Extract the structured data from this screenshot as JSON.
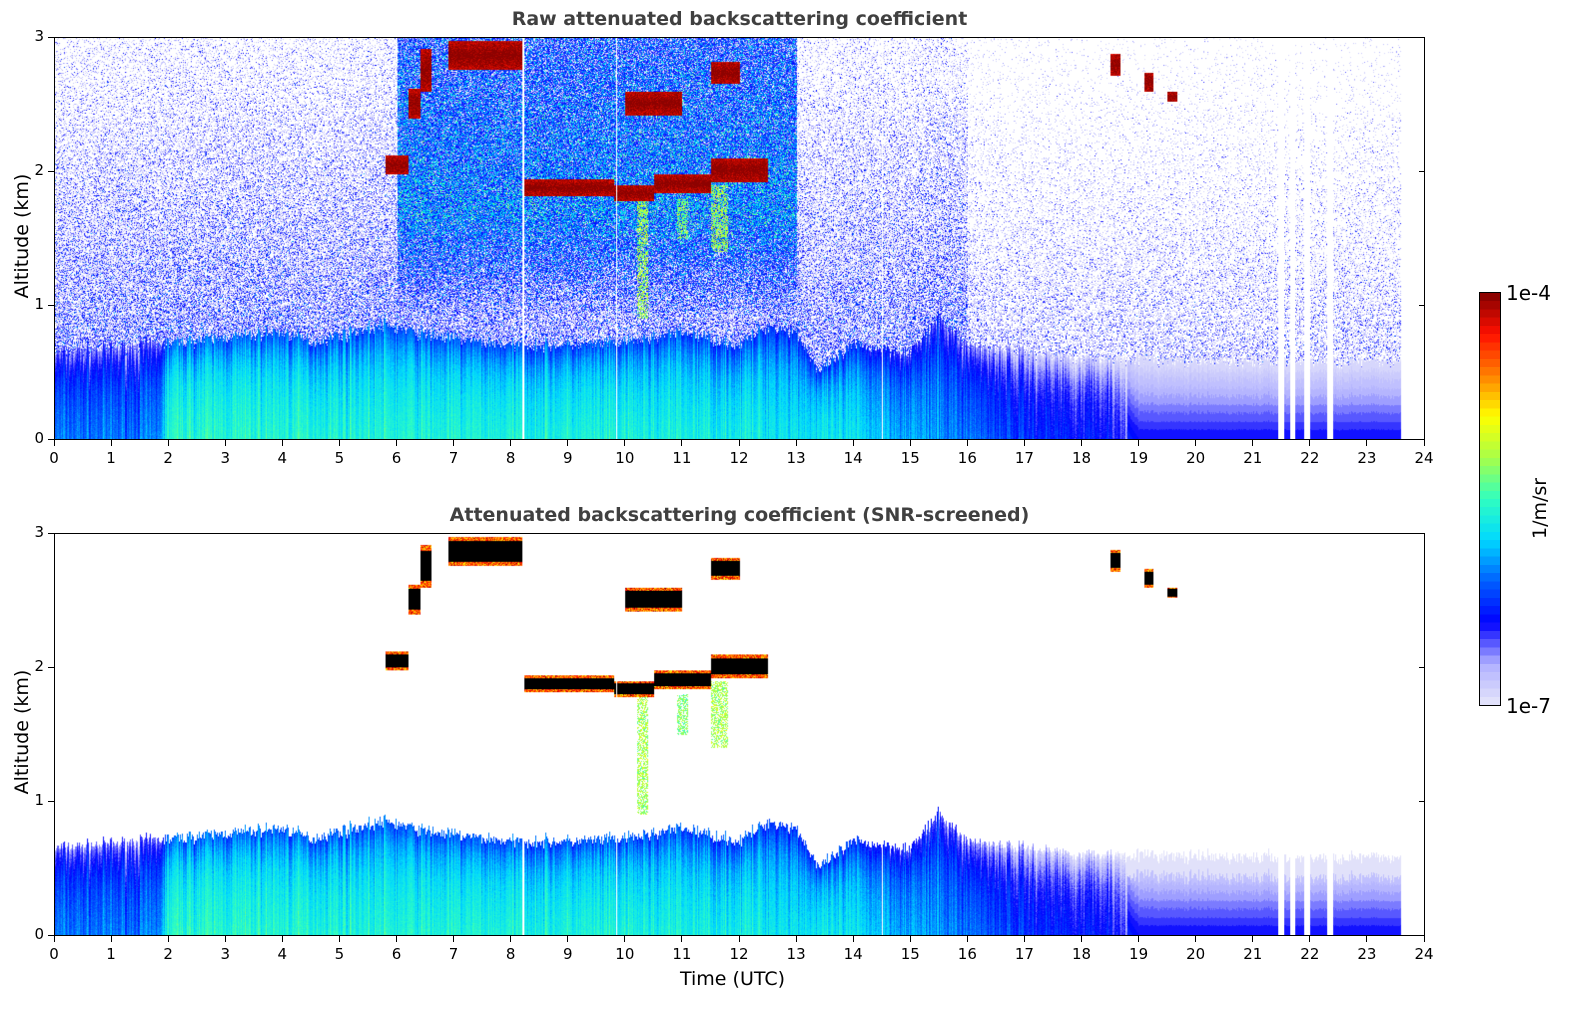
{
  "chart_data": [
    {
      "type": "heatmap",
      "title": "Raw attenuated backscattering coefficient",
      "xlabel": "",
      "ylabel": "Altitude (km)",
      "xlim": [
        0,
        24
      ],
      "ylim": [
        0,
        3
      ],
      "xticks": [
        "0",
        "1",
        "2",
        "3",
        "4",
        "5",
        "6",
        "7",
        "8",
        "9",
        "10",
        "11",
        "12",
        "13",
        "14",
        "15",
        "16",
        "17",
        "18",
        "19",
        "20",
        "21",
        "22",
        "23",
        "24"
      ],
      "yticks": [
        "0",
        "1",
        "2",
        "3"
      ],
      "screened": false
    },
    {
      "type": "heatmap",
      "title": "Attenuated backscattering coefficient (SNR-screened)",
      "xlabel": "Time (UTC)",
      "ylabel": "Altitude (km)",
      "xlim": [
        0,
        24
      ],
      "ylim": [
        0,
        3
      ],
      "xticks": [
        "0",
        "1",
        "2",
        "3",
        "4",
        "5",
        "6",
        "7",
        "8",
        "9",
        "10",
        "11",
        "12",
        "13",
        "14",
        "15",
        "16",
        "17",
        "18",
        "19",
        "20",
        "21",
        "22",
        "23",
        "24"
      ],
      "yticks": [
        "0",
        "1",
        "2",
        "3"
      ],
      "screened": true
    }
  ],
  "colorbar": {
    "label": "1/m/sr",
    "min_label": "1e-7",
    "max_label": "1e-4",
    "scale": "log",
    "range_log10": [
      -7,
      -4
    ],
    "colormap_stops": [
      "#e6e6fa",
      "#b0b0ff",
      "#0000ff",
      "#0060ff",
      "#00d8ff",
      "#30ffc0",
      "#a8ff48",
      "#ffff00",
      "#ff8000",
      "#ff1000",
      "#800000"
    ]
  },
  "data_end_hour": 23.6,
  "boundary_layer_top_km": [
    [
      0,
      0.65
    ],
    [
      1,
      0.68
    ],
    [
      1.5,
      0.7
    ],
    [
      2,
      0.72
    ],
    [
      4,
      0.8
    ],
    [
      4.5,
      0.72
    ],
    [
      5,
      0.78
    ],
    [
      5.8,
      0.85
    ],
    [
      6.5,
      0.78
    ],
    [
      7,
      0.75
    ],
    [
      8,
      0.7
    ],
    [
      9,
      0.7
    ],
    [
      10,
      0.72
    ],
    [
      11,
      0.8
    ],
    [
      12,
      0.7
    ],
    [
      12.5,
      0.85
    ],
    [
      13,
      0.8
    ],
    [
      13.4,
      0.5
    ],
    [
      14,
      0.7
    ],
    [
      15,
      0.65
    ],
    [
      15.5,
      0.9
    ],
    [
      16,
      0.7
    ],
    [
      17,
      0.65
    ],
    [
      18,
      0.6
    ],
    [
      19,
      0.6
    ],
    [
      20,
      0.58
    ],
    [
      23.6,
      0.58
    ]
  ],
  "boundary_layer_log10": [
    [
      0,
      -6.3
    ],
    [
      1.8,
      -6.3
    ],
    [
      2,
      -5.8
    ],
    [
      6,
      -5.85
    ],
    [
      12,
      -5.9
    ],
    [
      14,
      -6.0
    ],
    [
      16,
      -6.3
    ],
    [
      17,
      -6.5
    ],
    [
      18.5,
      -6.6
    ],
    [
      19,
      -6.9
    ],
    [
      23.6,
      -6.9
    ]
  ],
  "cloud_layers": [
    {
      "t": [
        5.8,
        6.2
      ],
      "z": [
        1.98,
        2.12
      ]
    },
    {
      "t": [
        6.2,
        6.4
      ],
      "z": [
        2.4,
        2.62
      ]
    },
    {
      "t": [
        6.4,
        6.6
      ],
      "z": [
        2.6,
        2.92
      ]
    },
    {
      "t": [
        6.9,
        8.2
      ],
      "z": [
        2.76,
        2.98
      ]
    },
    {
      "t": [
        8.2,
        9.8
      ],
      "z": [
        1.82,
        1.94
      ]
    },
    {
      "t": [
        9.8,
        10.5
      ],
      "z": [
        1.78,
        1.9
      ]
    },
    {
      "t": [
        10.5,
        11.5
      ],
      "z": [
        1.84,
        1.98
      ]
    },
    {
      "t": [
        11.5,
        12.5
      ],
      "z": [
        1.92,
        2.1
      ]
    },
    {
      "t": [
        10.0,
        11.0
      ],
      "z": [
        2.42,
        2.6
      ]
    },
    {
      "t": [
        11.5,
        12.0
      ],
      "z": [
        2.66,
        2.82
      ]
    },
    {
      "t": [
        18.5,
        18.68
      ],
      "z": [
        2.72,
        2.88
      ]
    },
    {
      "t": [
        19.1,
        19.25
      ],
      "z": [
        2.6,
        2.74
      ]
    },
    {
      "t": [
        19.5,
        19.68
      ],
      "z": [
        2.52,
        2.6
      ]
    }
  ],
  "virga": [
    {
      "t": [
        10.2,
        10.4
      ],
      "z": [
        0.9,
        1.8
      ],
      "log10": -5.2
    },
    {
      "t": [
        10.9,
        11.1
      ],
      "z": [
        1.5,
        1.8
      ],
      "log10": -5.3
    },
    {
      "t": [
        11.5,
        11.8
      ],
      "z": [
        1.4,
        1.9
      ],
      "log10": -5.2
    }
  ],
  "missing_data_hours": [
    [
      21.45,
      21.55
    ],
    [
      21.65,
      21.75
    ],
    [
      21.9,
      22.0
    ],
    [
      22.3,
      22.4
    ],
    [
      8.2,
      8.22
    ],
    [
      9.84,
      9.86
    ],
    [
      14.5,
      14.52
    ]
  ]
}
